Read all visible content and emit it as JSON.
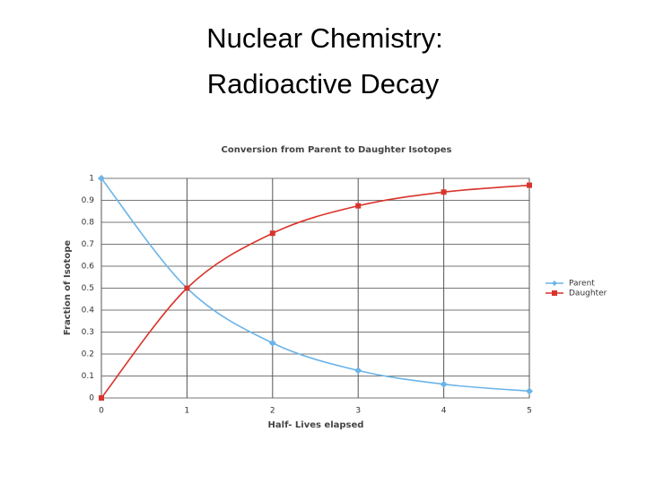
{
  "slide": {
    "title_lines": [
      "Nuclear Chemistry:",
      "Radioactive Decay"
    ]
  },
  "chart_data": {
    "type": "line",
    "title": "Conversion from Parent to Daughter Isotopes",
    "x_label": "Half- Lives elapsed",
    "y_label": "Fraction of Isotope",
    "x": [
      0,
      1,
      2,
      3,
      4,
      5
    ],
    "series": [
      {
        "name": "Parent",
        "color": "#6cb4e8",
        "marker": "diamond",
        "values": [
          1,
          0.5,
          0.25,
          0.125,
          0.0625,
          0.03125
        ]
      },
      {
        "name": "Daughter",
        "color": "#d9342b",
        "marker": "square",
        "values": [
          0,
          0.5,
          0.75,
          0.875,
          0.9375,
          0.96875
        ]
      }
    ],
    "xlim": [
      0,
      5
    ],
    "xticks": [
      0,
      1,
      2,
      3,
      4,
      5
    ],
    "ylim": [
      0,
      1
    ],
    "yticks": [
      0,
      0.1,
      0.2,
      0.3,
      0.4,
      0.5,
      0.6,
      0.7,
      0.8,
      0.9,
      1
    ],
    "grid": true,
    "legend": "right"
  }
}
